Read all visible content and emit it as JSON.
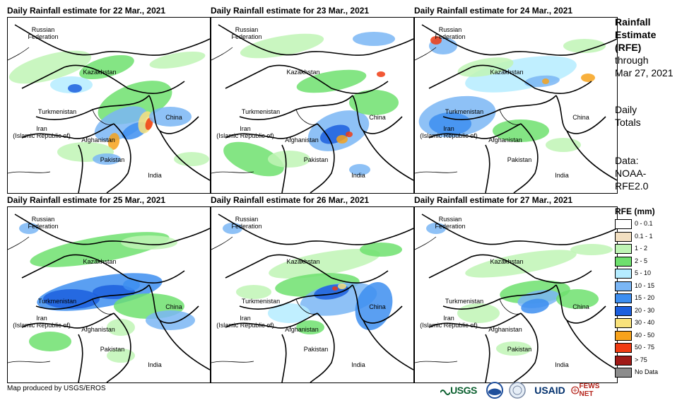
{
  "panels": [
    {
      "title": "Daily Rainfall estimate for 22 Mar., 2021"
    },
    {
      "title": "Daily Rainfall estimate for 23 Mar., 2021"
    },
    {
      "title": "Daily Rainfall estimate for 24 Mar., 2021"
    },
    {
      "title": "Daily Rainfall estimate for 25 Mar., 2021"
    },
    {
      "title": "Daily Rainfall estimate for 26 Mar., 2021"
    },
    {
      "title": "Daily Rainfall estimate for 27 Mar., 2021"
    }
  ],
  "country_labels": {
    "russia": "Russian\nFederation",
    "russia_1": "Russian",
    "russia_2": "Federation",
    "kazakhstan": "Kazakhstan",
    "turkmenistan": "Turkmenistan",
    "china": "China",
    "iran_1": "Iran",
    "iran_2": "(Islamic Republic of)",
    "afghanistan": "Afghanistan",
    "pakistan": "Pakistan",
    "india": "India"
  },
  "side_info": {
    "line1": "Rainfall",
    "line2": "Estimate",
    "line3": "(RFE)",
    "line4": "through",
    "line5": "Mar 27, 2021",
    "daily_1": "Daily",
    "daily_2": "Totals",
    "data_1": "Data:",
    "data_2": "NOAA-",
    "data_3": "RFE2.0"
  },
  "legend": {
    "title": "RFE (mm)",
    "items": [
      {
        "label": "0 - 0.1",
        "color": "#ffffff"
      },
      {
        "label": "0.1 - 1",
        "color": "#f2dfc1"
      },
      {
        "label": "1 - 2",
        "color": "#bff5b5"
      },
      {
        "label": "2 - 5",
        "color": "#6ee06e"
      },
      {
        "label": "5 - 10",
        "color": "#b5ecff"
      },
      {
        "label": "10 - 15",
        "color": "#7ab6f5"
      },
      {
        "label": "15 - 20",
        "color": "#3d8ef0"
      },
      {
        "label": "20 - 30",
        "color": "#1c5fde"
      },
      {
        "label": "30 - 40",
        "color": "#f9e27b"
      },
      {
        "label": "40 - 50",
        "color": "#f7a21b"
      },
      {
        "label": "50 - 75",
        "color": "#f03b12"
      },
      {
        "label": "> 75",
        "color": "#a01a17"
      },
      {
        "label": "No Data",
        "color": "#8c8c8c"
      }
    ]
  },
  "credit": "Map produced by USGS/EROS",
  "logos": {
    "usgs": "USGS",
    "usaid": "USAID",
    "fews": "FEWS NET"
  }
}
